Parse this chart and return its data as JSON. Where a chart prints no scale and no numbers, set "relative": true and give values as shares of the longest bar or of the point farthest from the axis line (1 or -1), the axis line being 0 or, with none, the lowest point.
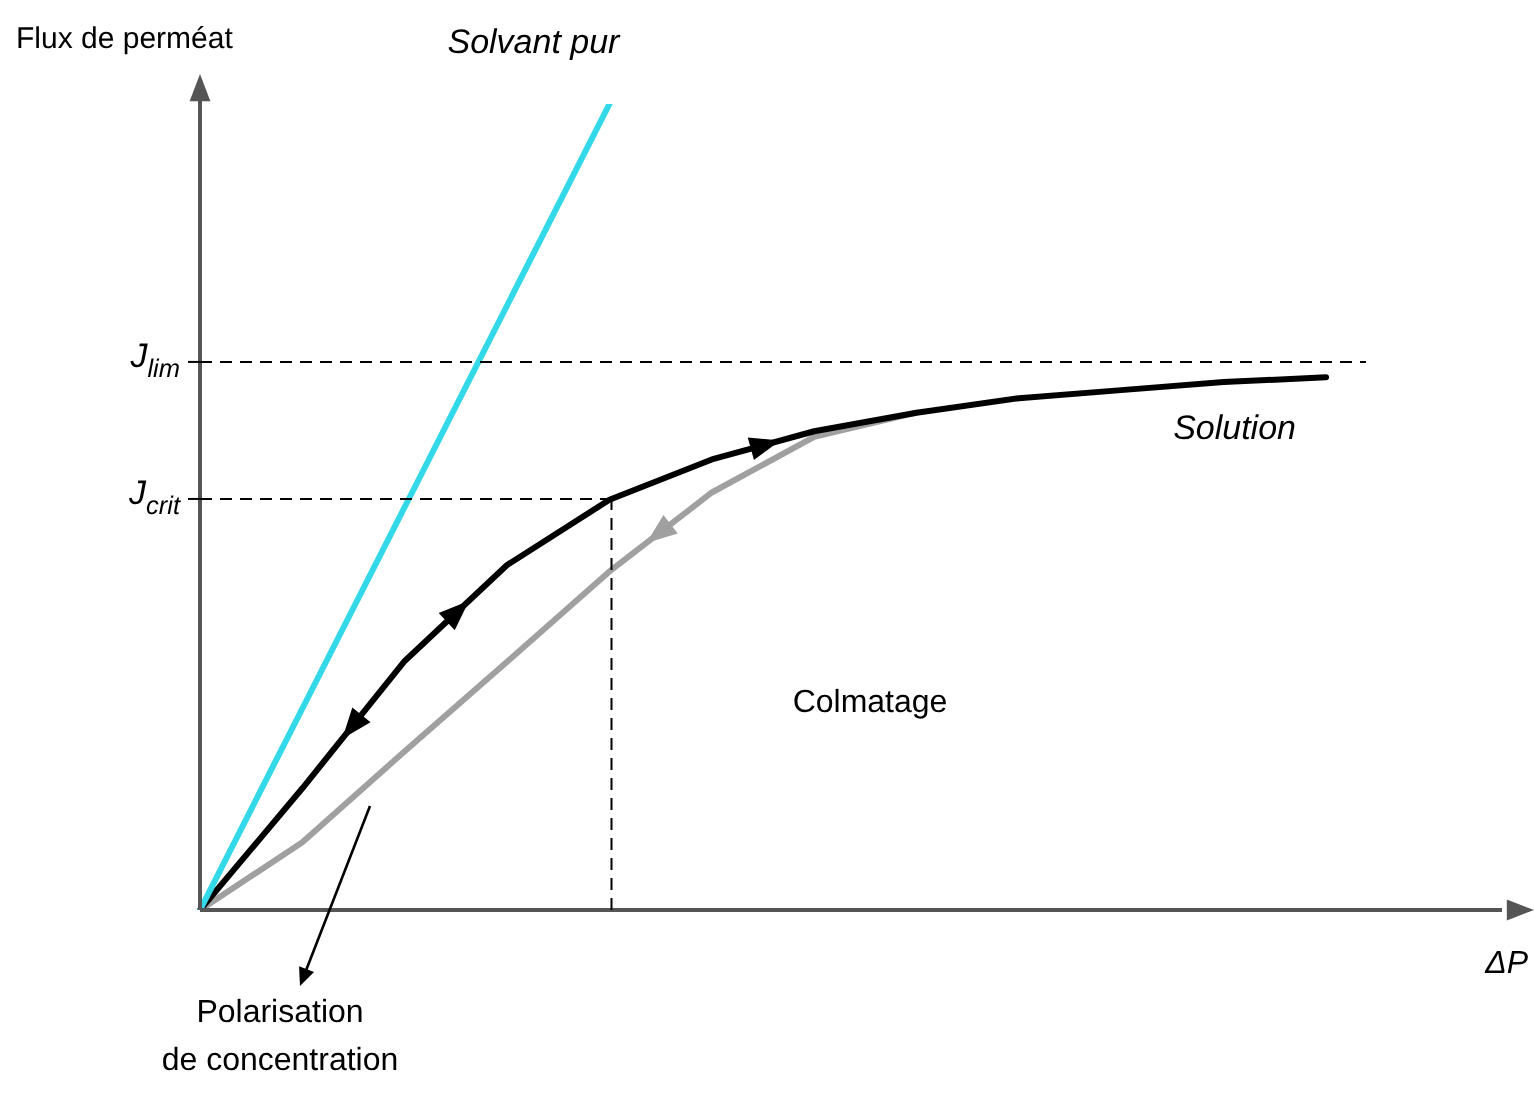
{
  "chart_data": {
    "type": "line",
    "relative": true,
    "ylabel": "Flux de perméat",
    "xlabel": "ΔP",
    "marker": "none",
    "line_style": "solid",
    "categories": [
      null,
      null,
      null,
      null,
      null,
      null,
      null,
      null,
      null,
      null,
      null,
      null
    ],
    "series": [
      {
        "name": "Solvant pur",
        "color": "#33d9e8",
        "values": [
          0,
          0.25,
          0.5,
          0.75,
          1.0,
          null,
          null,
          null,
          null,
          null,
          null,
          null
        ]
      },
      {
        "name": "Solution",
        "color": "#000000",
        "values": [
          0,
          0.151,
          0.309,
          0.428,
          0.509,
          0.559,
          0.594,
          0.617,
          0.635,
          0.645,
          0.655,
          0.661
        ]
      },
      {
        "color": "#a0a0a0",
        "values": [
          0,
          0.084,
          0.197,
          0.308,
          0.42,
          0.518,
          0.587,
          0.617,
          null,
          null,
          null,
          null
        ]
      }
    ],
    "ref_lines": [
      {
        "axis": "y",
        "value": 0.68,
        "label": "J$_{lim}$",
        "line_style": "dashed"
      },
      {
        "axis": "y",
        "value": 0.51,
        "label": "J$_{crit}$",
        "line_style": "dashed"
      }
    ],
    "annotations": [
      "Colmatage",
      "Polarisation de concentration"
    ]
  }
}
